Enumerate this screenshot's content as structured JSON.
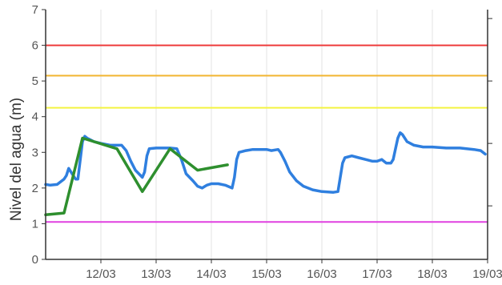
{
  "chart_data": {
    "type": "line",
    "title": "",
    "ylabel": "Nivel del agua (m)",
    "xlabel": "",
    "ylim": [
      0,
      7
    ],
    "y_ticks": [
      0,
      1,
      2,
      3,
      4,
      5,
      6,
      7
    ],
    "x_range": [
      "11/03 00:00",
      "19/03 00:00"
    ],
    "x_tick_labels": [
      "12/03",
      "13/03",
      "14/03",
      "15/03",
      "16/03",
      "17/03",
      "18/03",
      "19/03"
    ],
    "grid": "vertical",
    "right_axis": {
      "ticks_only": true,
      "tick_positions": [
        6.75,
        5.0,
        3.25,
        1.5
      ]
    },
    "thresholds": [
      {
        "value": 6.0,
        "color": "#ee3b3b"
      },
      {
        "value": 5.15,
        "color": "#f2b530"
      },
      {
        "value": 4.25,
        "color": "#f4f440"
      },
      {
        "value": 1.05,
        "color": "#e040e0"
      }
    ],
    "series": [
      {
        "color": "#2f7fdf",
        "points": [
          [
            "11/03 00:00",
            2.1
          ],
          [
            "11/03 02:00",
            2.08
          ],
          [
            "11/03 05:00",
            2.1
          ],
          [
            "11/03 08:00",
            2.25
          ],
          [
            "11/03 09:00",
            2.35
          ],
          [
            "11/03 10:00",
            2.55
          ],
          [
            "11/03 12:00",
            2.35
          ],
          [
            "11/03 13:00",
            2.25
          ],
          [
            "11/03 14:00",
            2.25
          ],
          [
            "11/03 16:00",
            3.3
          ],
          [
            "11/03 17:00",
            3.45
          ],
          [
            "11/03 18:00",
            3.4
          ],
          [
            "11/03 21:00",
            3.3
          ],
          [
            "12/03 00:00",
            3.25
          ],
          [
            "12/03 04:00",
            3.2
          ],
          [
            "12/03 09:00",
            3.2
          ],
          [
            "12/03 11:00",
            3.05
          ],
          [
            "12/03 13:00",
            2.75
          ],
          [
            "12/03 15:00",
            2.5
          ],
          [
            "12/03 18:00",
            2.3
          ],
          [
            "12/03 19:00",
            2.45
          ],
          [
            "12/03 20:00",
            2.9
          ],
          [
            "12/03 21:00",
            3.1
          ],
          [
            "13/03 00:00",
            3.12
          ],
          [
            "13/03 06:00",
            3.12
          ],
          [
            "13/03 09:00",
            3.1
          ],
          [
            "13/03 11:00",
            2.8
          ],
          [
            "13/03 13:00",
            2.4
          ],
          [
            "13/03 16:00",
            2.2
          ],
          [
            "13/03 18:00",
            2.05
          ],
          [
            "13/03 20:00",
            2.0
          ],
          [
            "13/03 22:00",
            2.08
          ],
          [
            "14/03 00:00",
            2.12
          ],
          [
            "14/03 03:00",
            2.12
          ],
          [
            "14/03 06:00",
            2.08
          ],
          [
            "14/03 09:00",
            2.0
          ],
          [
            "14/03 10:00",
            2.3
          ],
          [
            "14/03 11:00",
            2.8
          ],
          [
            "14/03 12:00",
            3.0
          ],
          [
            "14/03 15:00",
            3.05
          ],
          [
            "14/03 18:00",
            3.08
          ],
          [
            "15/03 00:00",
            3.08
          ],
          [
            "15/03 02:00",
            3.05
          ],
          [
            "15/03 05:00",
            3.08
          ],
          [
            "15/03 06:00",
            3.0
          ],
          [
            "15/03 08:00",
            2.75
          ],
          [
            "15/03 10:00",
            2.45
          ],
          [
            "15/03 13:00",
            2.2
          ],
          [
            "15/03 16:00",
            2.05
          ],
          [
            "15/03 20:00",
            1.95
          ],
          [
            "16/03 00:00",
            1.9
          ],
          [
            "16/03 05:00",
            1.88
          ],
          [
            "16/03 07:00",
            1.9
          ],
          [
            "16/03 08:00",
            2.3
          ],
          [
            "16/03 09:00",
            2.7
          ],
          [
            "16/03 10:00",
            2.85
          ],
          [
            "16/03 13:00",
            2.9
          ],
          [
            "16/03 16:00",
            2.85
          ],
          [
            "16/03 19:00",
            2.8
          ],
          [
            "16/03 22:00",
            2.75
          ],
          [
            "17/03 00:00",
            2.75
          ],
          [
            "17/03 02:00",
            2.8
          ],
          [
            "17/03 04:00",
            2.7
          ],
          [
            "17/03 06:00",
            2.7
          ],
          [
            "17/03 07:00",
            2.8
          ],
          [
            "17/03 08:00",
            3.1
          ],
          [
            "17/03 09:00",
            3.4
          ],
          [
            "17/03 10:00",
            3.55
          ],
          [
            "17/03 11:00",
            3.5
          ],
          [
            "17/03 13:00",
            3.3
          ],
          [
            "17/03 16:00",
            3.2
          ],
          [
            "17/03 20:00",
            3.15
          ],
          [
            "18/03 00:00",
            3.15
          ],
          [
            "18/03 06:00",
            3.12
          ],
          [
            "18/03 12:00",
            3.12
          ],
          [
            "18/03 18:00",
            3.08
          ],
          [
            "18/03 21:00",
            3.05
          ],
          [
            "18/03 23:00",
            2.95
          ]
        ]
      },
      {
        "color": "#2e8f2e",
        "points": [
          [
            "11/03 00:00",
            1.25
          ],
          [
            "11/03 08:00",
            1.3
          ],
          [
            "11/03 16:00",
            3.4
          ],
          [
            "12/03 07:00",
            3.1
          ],
          [
            "12/03 18:00",
            1.9
          ],
          [
            "13/03 06:00",
            3.1
          ],
          [
            "13/03 18:00",
            2.5
          ],
          [
            "14/03 07:00",
            2.65
          ]
        ]
      }
    ]
  }
}
